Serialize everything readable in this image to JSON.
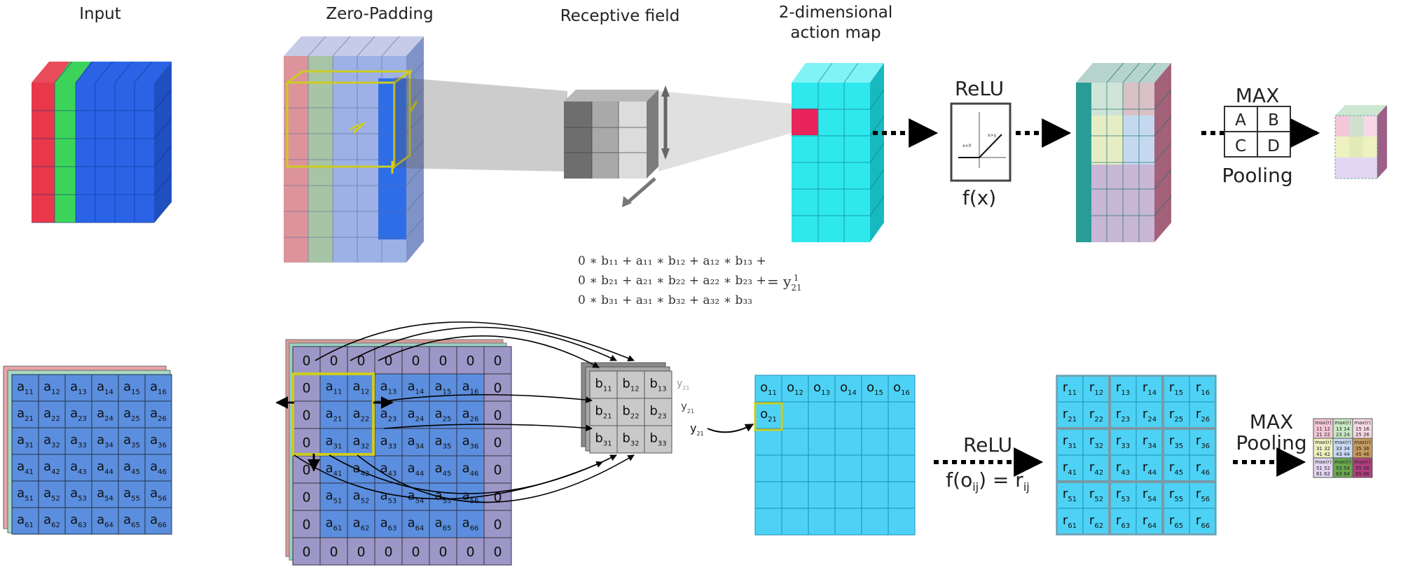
{
  "top": {
    "label_input": "Input",
    "label_padding": "Zero-Padding",
    "label_receptive": "Receptive field",
    "label_action_1": "2-dimensional",
    "label_action_2": "action map",
    "relu_title": "ReLU",
    "relu_fx": "f(x)",
    "relu_tiny_left": "x<0",
    "relu_tiny_right": "x>y",
    "max_title": "MAX",
    "max_cells": [
      "A",
      "B",
      "C",
      "D"
    ],
    "pooling": "Pooling"
  },
  "equation": {
    "line1": "0 ∗ b₁₁ + a₁₁ ∗ b₁₂ + a₁₂ ∗ b₁₃ +",
    "line2": "0 ∗ b₂₁ + a₂₁ ∗ b₂₂ + a₂₂ ∗ b₂₃ +",
    "line3": "0 ∗ b₃₁ + a₃₁ ∗ b₃₂ + a₃₂ ∗ b₃₃",
    "result": "= y",
    "result_sub": "21",
    "result_sup": "1"
  },
  "bottom": {
    "input_letter": "a",
    "padding_zero": "0",
    "kernel_letter": "b",
    "output_letter": "o",
    "relu_letter": "r",
    "y_letter": "y",
    "y_sub": "21",
    "relu_title": "ReLU",
    "relu_formula": "f(o",
    "relu_formula_sub": "ij",
    "relu_formula_mid": ") = r",
    "relu_formula_sub2": "ij",
    "max_title": "MAX",
    "pooling": "Pooling",
    "pool_head": "max(r)",
    "pool_cells": [
      {
        "a": "11 12",
        "b": "21 22",
        "color": "#f4c7d8"
      },
      {
        "a": "13 14",
        "b": "23 24",
        "color": "#c9e8c4"
      },
      {
        "a": "15 16",
        "b": "25 26",
        "color": "#f6d9e4"
      },
      {
        "a": "31 32",
        "b": "41 42",
        "color": "#eef2c0"
      },
      {
        "a": "33 34",
        "b": "43 44",
        "color": "#c8daf4"
      },
      {
        "a": "35 36",
        "b": "45 46",
        "color": "#c79a5e"
      },
      {
        "a": "51 52",
        "b": "61 62",
        "color": "#e3d6f2"
      },
      {
        "a": "53 54",
        "b": "63 64",
        "color": "#6aa84f"
      },
      {
        "a": "55 56",
        "b": "65 66",
        "color": "#b04080"
      }
    ]
  },
  "colors": {
    "input_blue": "#5b8ede",
    "padding_purple": "#9c97c6",
    "output_cyan": "#4dd2f5",
    "highlight_yellow": "#c8d400",
    "red_channel": "#e8384a",
    "green_channel": "#3cd35a",
    "blue_channel": "#2a63e6",
    "action_map_cyan": "#2ee8ee",
    "action_map_red": "#e8245a"
  }
}
